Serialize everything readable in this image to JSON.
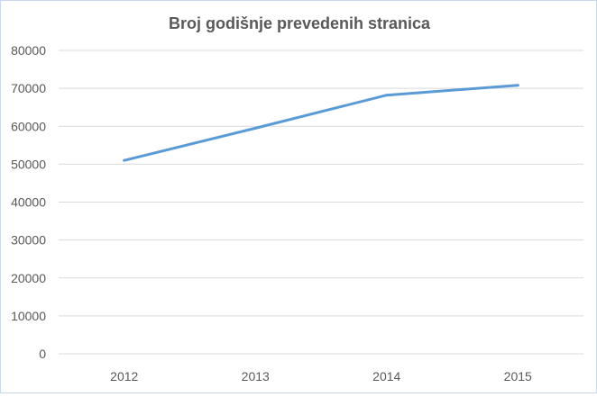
{
  "chart_data": {
    "type": "line",
    "title": "Broj godišnje prevedenih stranica",
    "xlabel": "",
    "ylabel": "",
    "categories": [
      "2012",
      "2013",
      "2014",
      "2015"
    ],
    "series": [
      {
        "values": [
          51000,
          59500,
          68200,
          70800
        ]
      }
    ],
    "ylim": [
      0,
      80000
    ],
    "yticks": [
      "0",
      "10000",
      "20000",
      "30000",
      "40000",
      "50000",
      "60000",
      "70000",
      "80000"
    ],
    "grid": true,
    "legend": "none",
    "line_color": "#5b9bd5"
  }
}
